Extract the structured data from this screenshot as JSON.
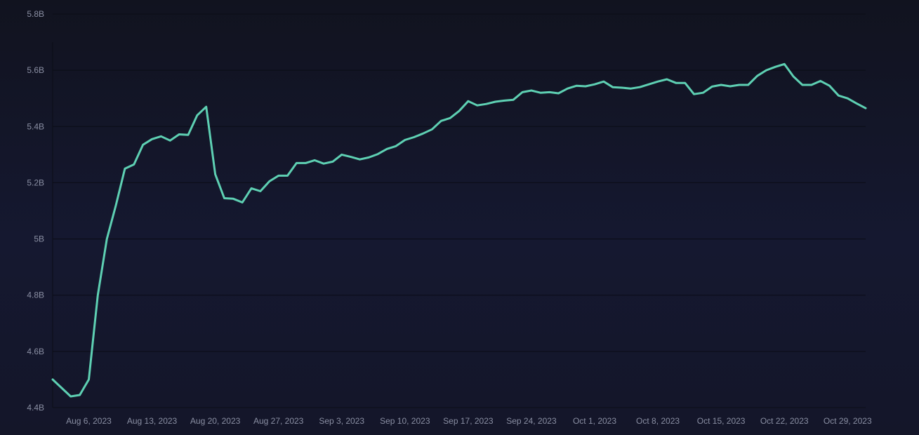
{
  "chart_data": {
    "type": "line",
    "title": "",
    "xlabel": "",
    "ylabel": "",
    "grid": true,
    "legend": "none",
    "colors": {
      "background": "#141629",
      "line": "#5ed0b3",
      "grid": "#0b0d16",
      "tick_text": "#8a8fa3"
    },
    "ylim": [
      4.4,
      5.8
    ],
    "y_ticks": [
      4.4,
      4.6,
      4.8,
      5.0,
      5.2,
      5.4,
      5.6,
      5.8
    ],
    "y_tick_labels": [
      "4.4B",
      "4.6B",
      "4.8B",
      "5B",
      "5.2B",
      "5.4B",
      "5.6B",
      "5.8B"
    ],
    "xlim": [
      "2023-08-02",
      "2023-10-31"
    ],
    "x_ticks": [
      "2023-08-06",
      "2023-08-13",
      "2023-08-20",
      "2023-08-27",
      "2023-09-03",
      "2023-09-10",
      "2023-09-17",
      "2023-09-24",
      "2023-10-01",
      "2023-10-08",
      "2023-10-15",
      "2023-10-22",
      "2023-10-29"
    ],
    "x_tick_labels": [
      "Aug 6, 2023",
      "Aug 13, 2023",
      "Aug 20, 2023",
      "Aug 27, 2023",
      "Sep 3, 2023",
      "Sep 10, 2023",
      "Sep 17, 2023",
      "Sep 24, 2023",
      "Oct 1, 2023",
      "Oct 8, 2023",
      "Oct 15, 2023",
      "Oct 22, 2023",
      "Oct 29, 2023"
    ],
    "series": [
      {
        "x": [
          "2023-08-02",
          "2023-08-03",
          "2023-08-04",
          "2023-08-05",
          "2023-08-06",
          "2023-08-07",
          "2023-08-08",
          "2023-08-09",
          "2023-08-10",
          "2023-08-11",
          "2023-08-12",
          "2023-08-13",
          "2023-08-14",
          "2023-08-15",
          "2023-08-16",
          "2023-08-17",
          "2023-08-18",
          "2023-08-19",
          "2023-08-20",
          "2023-08-21",
          "2023-08-22",
          "2023-08-23",
          "2023-08-24",
          "2023-08-25",
          "2023-08-26",
          "2023-08-27",
          "2023-08-28",
          "2023-08-29",
          "2023-08-30",
          "2023-08-31",
          "2023-09-01",
          "2023-09-02",
          "2023-09-03",
          "2023-09-04",
          "2023-09-05",
          "2023-09-06",
          "2023-09-07",
          "2023-09-08",
          "2023-09-09",
          "2023-09-10",
          "2023-09-11",
          "2023-09-12",
          "2023-09-13",
          "2023-09-14",
          "2023-09-15",
          "2023-09-16",
          "2023-09-17",
          "2023-09-18",
          "2023-09-19",
          "2023-09-20",
          "2023-09-21",
          "2023-09-22",
          "2023-09-23",
          "2023-09-24",
          "2023-09-25",
          "2023-09-26",
          "2023-09-27",
          "2023-09-28",
          "2023-09-29",
          "2023-09-30",
          "2023-10-01",
          "2023-10-02",
          "2023-10-03",
          "2023-10-04",
          "2023-10-05",
          "2023-10-06",
          "2023-10-07",
          "2023-10-08",
          "2023-10-09",
          "2023-10-10",
          "2023-10-11",
          "2023-10-12",
          "2023-10-13",
          "2023-10-14",
          "2023-10-15",
          "2023-10-16",
          "2023-10-17",
          "2023-10-18",
          "2023-10-19",
          "2023-10-20",
          "2023-10-21",
          "2023-10-22",
          "2023-10-23",
          "2023-10-24",
          "2023-10-25",
          "2023-10-26",
          "2023-10-27",
          "2023-10-28",
          "2023-10-29",
          "2023-10-30",
          "2023-10-31"
        ],
        "values": [
          4.5,
          4.47,
          4.44,
          4.445,
          4.5,
          4.8,
          5.0,
          5.12,
          5.25,
          5.265,
          5.335,
          5.355,
          5.365,
          5.35,
          5.372,
          5.37,
          5.44,
          5.47,
          5.23,
          5.145,
          5.143,
          5.13,
          5.18,
          5.17,
          5.205,
          5.225,
          5.225,
          5.27,
          5.27,
          5.28,
          5.268,
          5.275,
          5.3,
          5.292,
          5.283,
          5.29,
          5.302,
          5.32,
          5.33,
          5.352,
          5.362,
          5.375,
          5.39,
          5.42,
          5.43,
          5.455,
          5.49,
          5.475,
          5.48,
          5.488,
          5.492,
          5.495,
          5.522,
          5.528,
          5.52,
          5.522,
          5.518,
          5.535,
          5.545,
          5.543,
          5.55,
          5.56,
          5.54,
          5.538,
          5.535,
          5.54,
          5.55,
          5.56,
          5.568,
          5.555,
          5.555,
          5.515,
          5.52,
          5.542,
          5.548,
          5.543,
          5.548,
          5.548,
          5.58,
          5.6,
          5.612,
          5.622,
          5.578,
          5.548,
          5.548,
          5.562,
          5.545,
          5.51,
          5.5,
          5.482,
          5.465
        ]
      }
    ]
  }
}
